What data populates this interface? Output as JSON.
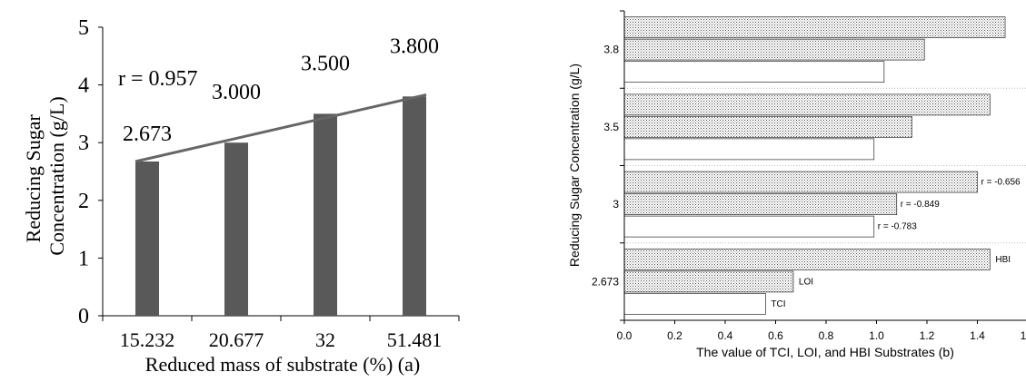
{
  "chart_data": [
    {
      "type": "bar",
      "panel": "(a)",
      "title": "",
      "xlabel": "Reduced mass of substrate (%) (a)",
      "ylabel_lines": [
        "Reducing Sugar",
        "Concentration (g/L)"
      ],
      "categories": [
        "15.232",
        "20.677",
        "32",
        "51.481"
      ],
      "values": [
        2.673,
        3.0,
        3.5,
        3.8
      ],
      "data_labels": [
        "2.673",
        "3.000",
        "3.500",
        "3.800"
      ],
      "trendline": {
        "from": 2.673,
        "to": 3.83,
        "color": "#666666"
      },
      "annotation": "r = 0.957",
      "ylim": [
        0,
        5
      ],
      "yticks": [
        "0",
        "1",
        "2",
        "3",
        "4",
        "5"
      ],
      "bar_color": "#595959",
      "grid": false
    },
    {
      "type": "bar",
      "orientation": "horizontal",
      "panel": "(b)",
      "title": "",
      "xlabel": "The value of TCI, LOI, and HBI Substrates (b)",
      "ylabel": "Reducing Sugar Concentration (g/L)",
      "categories": [
        "2.673",
        "3",
        "3.5",
        "3.8"
      ],
      "series": [
        {
          "name": "TCI",
          "values": [
            0.56,
            0.99,
            0.99,
            1.03
          ],
          "fill": "#ffffff"
        },
        {
          "name": "LOI",
          "values": [
            0.67,
            1.08,
            1.14,
            1.19
          ],
          "fill": "dotted"
        },
        {
          "name": "HBI",
          "values": [
            1.45,
            1.4,
            1.45,
            1.51
          ],
          "fill": "dotted"
        }
      ],
      "annotations": [
        {
          "text": "r = -0.783",
          "category": "3",
          "series": "TCI"
        },
        {
          "text": "r = -0.849",
          "category": "3",
          "series": "LOI"
        },
        {
          "text": "r = -0.656",
          "category": "3",
          "series": "HBI"
        }
      ],
      "xlim": [
        0,
        1.6
      ],
      "xticks": [
        "0.0",
        "0.2",
        "0.4",
        "0.6",
        "0.8",
        "1.0",
        "1.2",
        "1.4",
        "1.6"
      ],
      "grid": "dotted separators between groups"
    }
  ]
}
